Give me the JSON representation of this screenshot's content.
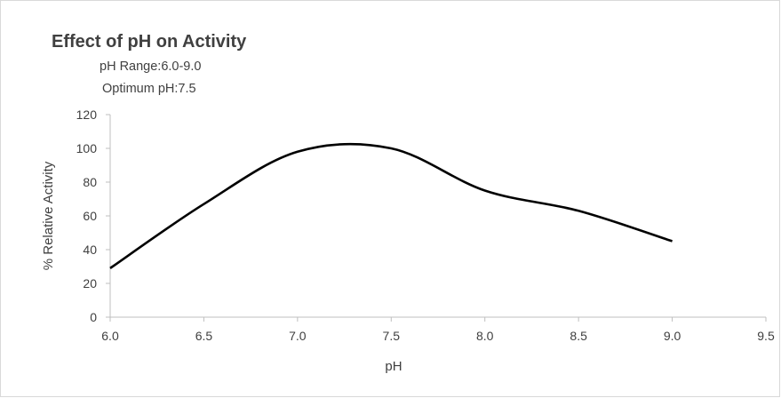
{
  "chart_data": {
    "type": "line",
    "title": "Effect of pH on Activity",
    "annotations": [
      "pH Range:6.0-9.0",
      "Optimum pH:7.5"
    ],
    "xlabel": "pH",
    "ylabel": "% Relative Activity",
    "xlim": [
      6.0,
      9.5
    ],
    "ylim": [
      0,
      120
    ],
    "x_ticks": [
      "6.0",
      "6.5",
      "7.0",
      "7.5",
      "8.0",
      "8.5",
      "9.0",
      "9.5"
    ],
    "y_ticks": [
      "0",
      "20",
      "40",
      "60",
      "80",
      "100",
      "120"
    ],
    "grid": false,
    "legend": "none",
    "line_color": "#000000",
    "series": [
      {
        "x": [
          6.0,
          6.5,
          7.0,
          7.5,
          8.0,
          8.5,
          9.0
        ],
        "y": [
          29,
          67,
          98,
          100,
          75,
          63,
          45
        ]
      }
    ]
  }
}
